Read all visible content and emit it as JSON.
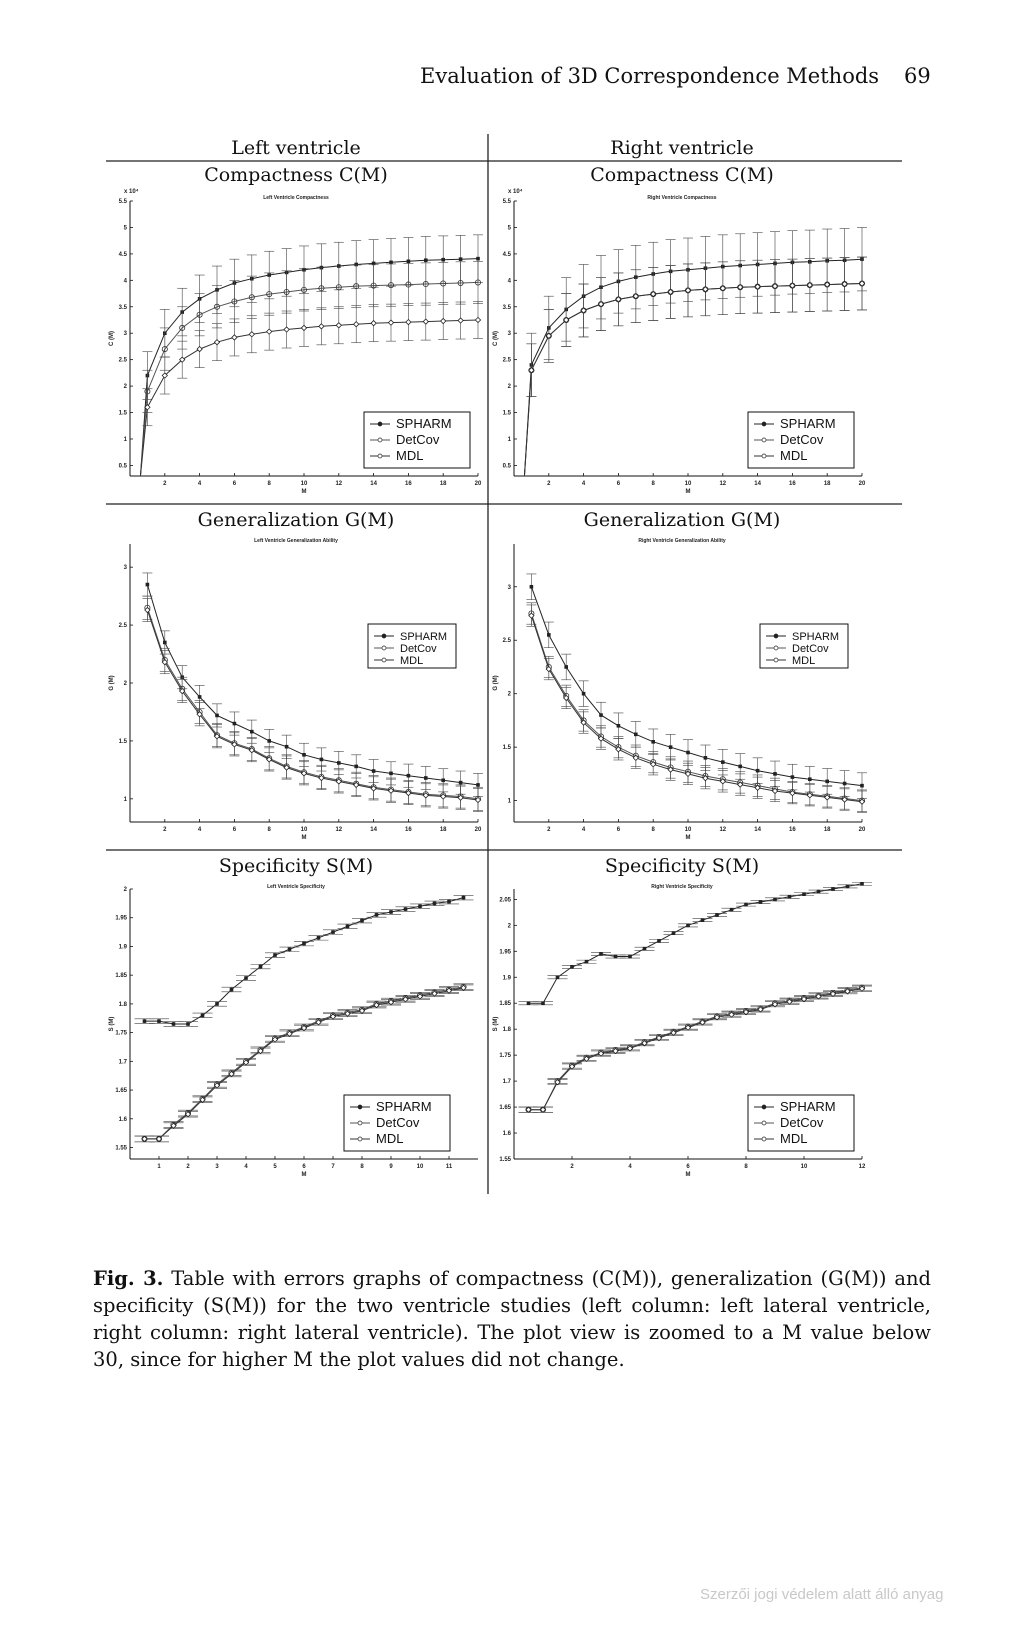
{
  "header": {
    "running_title": "Evaluation of 3D Correspondence Methods",
    "page_number": "69"
  },
  "figure": {
    "columns": [
      "Left ventricle",
      "Right ventricle"
    ],
    "panels": [
      {
        "id": "lc",
        "title": "Compactness C(M)",
        "inner_title": "Left Ventricle Compactness",
        "ylabel": "C (M)",
        "xlabel": "M",
        "exponent": "x 10⁴",
        "xticks": [
          "2",
          "4",
          "6",
          "8",
          "10",
          "12",
          "14",
          "16",
          "18",
          "20"
        ],
        "yticks": [
          "0.5",
          "1",
          "1.5",
          "2",
          "2.5",
          "3",
          "3.5",
          "4",
          "4.5",
          "5",
          "5.5"
        ],
        "legend_pos": "lower-right"
      },
      {
        "id": "rc",
        "title": "Compactness C(M)",
        "inner_title": "Right Ventricle Compactness",
        "ylabel": "C (M)",
        "xlabel": "M",
        "exponent": "x 10⁴",
        "xticks": [
          "2",
          "4",
          "6",
          "8",
          "10",
          "12",
          "14",
          "16",
          "18",
          "20"
        ],
        "yticks": [
          "0.5",
          "1",
          "1.5",
          "2",
          "2.5",
          "3",
          "3.5",
          "4",
          "4.5",
          "5",
          "5.5"
        ],
        "legend_pos": "lower-right"
      },
      {
        "id": "lg",
        "title": "Generalization G(M)",
        "inner_title": "Left Ventricle Generalization Ability",
        "ylabel": "G (M)",
        "xlabel": "M",
        "xticks": [
          "2",
          "4",
          "6",
          "8",
          "10",
          "12",
          "14",
          "16",
          "18",
          "20"
        ],
        "yticks": [
          "1",
          "1.5",
          "2",
          "2.5",
          "3"
        ],
        "legend_pos": "upper-right"
      },
      {
        "id": "rg",
        "title": "Generalization G(M)",
        "inner_title": "Right Ventricle Generalization Ability",
        "ylabel": "G (M)",
        "xlabel": "M",
        "xticks": [
          "2",
          "4",
          "6",
          "8",
          "10",
          "12",
          "14",
          "16",
          "18",
          "20"
        ],
        "yticks": [
          "1",
          "1.5",
          "2",
          "2.5",
          "3"
        ],
        "legend_pos": "upper-right"
      },
      {
        "id": "ls",
        "title": "Specificity S(M)",
        "inner_title": "Left Ventricle Specificity",
        "ylabel": "S (M)",
        "xlabel": "M",
        "xticks": [
          "1",
          "2",
          "3",
          "4",
          "5",
          "6",
          "7",
          "8",
          "9",
          "10",
          "11"
        ],
        "yticks": [
          "1.55",
          "1.6",
          "1.65",
          "1.7",
          "1.75",
          "1.8",
          "1.85",
          "1.9",
          "1.95",
          "2"
        ],
        "legend_pos": "lower-right"
      },
      {
        "id": "rs",
        "title": "Specificity S(M)",
        "inner_title": "Right Ventricle Specificity",
        "ylabel": "S (M)",
        "xlabel": "M",
        "xticks": [
          "2",
          "4",
          "6",
          "8",
          "10",
          "12"
        ],
        "yticks": [
          "1.55",
          "1.6",
          "1.65",
          "1.7",
          "1.75",
          "1.8",
          "1.85",
          "1.9",
          "1.95",
          "2",
          "2.05"
        ],
        "legend_pos": "lower-right"
      }
    ]
  },
  "legend": [
    "SPHARM",
    "DetCov",
    "MDL"
  ],
  "caption": {
    "label": "Fig. 3.",
    "text": "Table with errors graphs of compactness (C(M)), generalization (G(M)) and specificity (S(M)) for the two ventricle studies (left column: left lateral ventricle, right column: right lateral ventricle). The plot view is zoomed to a M value below 30, since for higher M the plot values did not change."
  },
  "watermark": "Szerzői jogi védelem alatt álló anyag",
  "chart_data": [
    {
      "type": "line",
      "title": "Left Ventricle Compactness",
      "xlabel": "M",
      "ylabel": "C (M)",
      "xlim": [
        0,
        20
      ],
      "ylim": [
        0.3,
        5.5
      ],
      "y_scale_note": "x 10^4",
      "x": [
        1,
        2,
        3,
        4,
        5,
        6,
        7,
        8,
        9,
        10,
        11,
        12,
        13,
        14,
        15,
        16,
        17,
        18,
        19,
        20
      ],
      "series": [
        {
          "name": "SPHARM",
          "values": [
            2.2,
            3.0,
            3.4,
            3.65,
            3.82,
            3.95,
            4.03,
            4.1,
            4.15,
            4.2,
            4.24,
            4.27,
            4.3,
            4.32,
            4.34,
            4.36,
            4.38,
            4.39,
            4.4,
            4.41
          ],
          "error": 0.45
        },
        {
          "name": "DetCov",
          "values": [
            1.9,
            2.7,
            3.1,
            3.35,
            3.5,
            3.6,
            3.68,
            3.74,
            3.78,
            3.82,
            3.85,
            3.87,
            3.89,
            3.9,
            3.91,
            3.92,
            3.93,
            3.94,
            3.95,
            3.96
          ],
          "error": 0.4
        },
        {
          "name": "MDL",
          "values": [
            1.6,
            2.2,
            2.5,
            2.7,
            2.83,
            2.92,
            2.98,
            3.03,
            3.07,
            3.1,
            3.13,
            3.15,
            3.17,
            3.19,
            3.2,
            3.21,
            3.22,
            3.23,
            3.24,
            3.25
          ],
          "error": 0.35
        }
      ]
    },
    {
      "type": "line",
      "title": "Right Ventricle Compactness",
      "xlabel": "M",
      "ylabel": "C (M)",
      "xlim": [
        0,
        20
      ],
      "ylim": [
        0.3,
        5.5
      ],
      "y_scale_note": "x 10^4",
      "x": [
        1,
        2,
        3,
        4,
        5,
        6,
        7,
        8,
        9,
        10,
        11,
        12,
        13,
        14,
        15,
        16,
        17,
        18,
        19,
        20
      ],
      "series": [
        {
          "name": "SPHARM",
          "values": [
            2.4,
            3.1,
            3.45,
            3.7,
            3.87,
            3.98,
            4.06,
            4.12,
            4.17,
            4.2,
            4.23,
            4.26,
            4.28,
            4.3,
            4.32,
            4.34,
            4.35,
            4.37,
            4.38,
            4.4
          ],
          "error": 0.6
        },
        {
          "name": "DetCov",
          "values": [
            2.3,
            2.95,
            3.25,
            3.43,
            3.55,
            3.64,
            3.7,
            3.74,
            3.78,
            3.81,
            3.83,
            3.85,
            3.87,
            3.88,
            3.89,
            3.9,
            3.91,
            3.92,
            3.93,
            3.94
          ],
          "error": 0.5
        },
        {
          "name": "MDL",
          "values": [
            2.3,
            2.95,
            3.25,
            3.43,
            3.55,
            3.64,
            3.7,
            3.74,
            3.78,
            3.81,
            3.83,
            3.85,
            3.87,
            3.88,
            3.89,
            3.9,
            3.91,
            3.92,
            3.93,
            3.94
          ],
          "error": 0.5
        }
      ]
    },
    {
      "type": "line",
      "title": "Left Ventricle Generalization Ability",
      "xlabel": "M",
      "ylabel": "G (M)",
      "xlim": [
        0,
        20
      ],
      "ylim": [
        0.8,
        3.2
      ],
      "x": [
        1,
        2,
        3,
        4,
        5,
        6,
        7,
        8,
        9,
        10,
        11,
        12,
        13,
        14,
        15,
        16,
        17,
        18,
        19,
        20
      ],
      "series": [
        {
          "name": "SPHARM",
          "values": [
            2.85,
            2.35,
            2.05,
            1.88,
            1.72,
            1.65,
            1.58,
            1.5,
            1.45,
            1.38,
            1.34,
            1.31,
            1.28,
            1.24,
            1.22,
            1.2,
            1.18,
            1.16,
            1.14,
            1.12
          ],
          "error": 0.1
        },
        {
          "name": "DetCov",
          "values": [
            2.65,
            2.2,
            1.95,
            1.75,
            1.55,
            1.48,
            1.43,
            1.35,
            1.28,
            1.23,
            1.19,
            1.16,
            1.13,
            1.1,
            1.08,
            1.06,
            1.04,
            1.03,
            1.02,
            1.0
          ],
          "error": 0.1
        },
        {
          "name": "MDL",
          "values": [
            2.63,
            2.18,
            1.93,
            1.73,
            1.54,
            1.47,
            1.42,
            1.34,
            1.27,
            1.22,
            1.18,
            1.15,
            1.12,
            1.09,
            1.07,
            1.05,
            1.03,
            1.02,
            1.01,
            0.99
          ],
          "error": 0.1
        }
      ]
    },
    {
      "type": "line",
      "title": "Right Ventricle Generalization Ability",
      "xlabel": "M",
      "ylabel": "G (M)",
      "xlim": [
        0,
        20
      ],
      "ylim": [
        0.8,
        3.4
      ],
      "x": [
        1,
        2,
        3,
        4,
        5,
        6,
        7,
        8,
        9,
        10,
        11,
        12,
        13,
        14,
        15,
        16,
        17,
        18,
        19,
        20
      ],
      "series": [
        {
          "name": "SPHARM",
          "values": [
            3.0,
            2.55,
            2.25,
            2.0,
            1.8,
            1.7,
            1.62,
            1.55,
            1.5,
            1.45,
            1.4,
            1.36,
            1.32,
            1.28,
            1.25,
            1.22,
            1.2,
            1.18,
            1.16,
            1.14
          ],
          "error": 0.12
        },
        {
          "name": "DetCov",
          "values": [
            2.75,
            2.25,
            1.98,
            1.75,
            1.6,
            1.5,
            1.42,
            1.36,
            1.31,
            1.27,
            1.23,
            1.2,
            1.17,
            1.14,
            1.11,
            1.08,
            1.06,
            1.04,
            1.02,
            1.0
          ],
          "error": 0.1
        },
        {
          "name": "MDL",
          "values": [
            2.73,
            2.23,
            1.96,
            1.73,
            1.58,
            1.48,
            1.4,
            1.34,
            1.29,
            1.25,
            1.21,
            1.18,
            1.15,
            1.12,
            1.09,
            1.07,
            1.05,
            1.03,
            1.01,
            0.99
          ],
          "error": 0.1
        }
      ]
    },
    {
      "type": "line",
      "title": "Left Ventricle Specificity",
      "xlabel": "M",
      "ylabel": "S (M)",
      "xlim": [
        0,
        12
      ],
      "ylim": [
        1.53,
        2.0
      ],
      "x": [
        0.5,
        1,
        1.5,
        2,
        2.5,
        3,
        3.5,
        4,
        4.5,
        5,
        5.5,
        6,
        6.5,
        7,
        7.5,
        8,
        8.5,
        9,
        9.5,
        10,
        10.5,
        11,
        11.5
      ],
      "series": [
        {
          "name": "SPHARM",
          "values": [
            1.77,
            1.77,
            1.765,
            1.765,
            1.78,
            1.8,
            1.825,
            1.845,
            1.865,
            1.885,
            1.895,
            1.905,
            1.915,
            1.925,
            1.935,
            1.945,
            1.955,
            1.96,
            1.965,
            1.97,
            1.975,
            1.978,
            1.985
          ],
          "error": 0.004
        },
        {
          "name": "DetCov",
          "values": [
            1.565,
            1.565,
            1.59,
            1.61,
            1.635,
            1.66,
            1.68,
            1.7,
            1.72,
            1.74,
            1.75,
            1.76,
            1.77,
            1.78,
            1.785,
            1.79,
            1.8,
            1.805,
            1.81,
            1.815,
            1.82,
            1.825,
            1.83
          ],
          "error": 0.005
        },
        {
          "name": "MDL",
          "values": [
            1.565,
            1.565,
            1.588,
            1.608,
            1.633,
            1.658,
            1.678,
            1.698,
            1.718,
            1.738,
            1.748,
            1.758,
            1.768,
            1.778,
            1.783,
            1.788,
            1.798,
            1.803,
            1.808,
            1.813,
            1.818,
            1.823,
            1.828
          ],
          "error": 0.005
        }
      ]
    },
    {
      "type": "line",
      "title": "Right Ventricle Specificity",
      "xlabel": "M",
      "ylabel": "S (M)",
      "xlim": [
        0,
        12
      ],
      "ylim": [
        1.55,
        2.07
      ],
      "x": [
        0.5,
        1,
        1.5,
        2,
        2.5,
        3,
        3.5,
        4,
        4.5,
        5,
        5.5,
        6,
        6.5,
        7,
        7.5,
        8,
        8.5,
        9,
        9.5,
        10,
        10.5,
        11,
        11.5,
        12
      ],
      "series": [
        {
          "name": "SPHARM",
          "values": [
            1.85,
            1.85,
            1.9,
            1.92,
            1.93,
            1.945,
            1.94,
            1.94,
            1.955,
            1.97,
            1.985,
            2.0,
            2.01,
            2.02,
            2.03,
            2.04,
            2.045,
            2.05,
            2.055,
            2.06,
            2.065,
            2.07,
            2.075,
            2.08
          ],
          "error": 0.003
        },
        {
          "name": "DetCov",
          "values": [
            1.645,
            1.645,
            1.7,
            1.73,
            1.745,
            1.755,
            1.76,
            1.765,
            1.775,
            1.785,
            1.795,
            1.805,
            1.815,
            1.825,
            1.83,
            1.835,
            1.84,
            1.85,
            1.855,
            1.86,
            1.865,
            1.87,
            1.875,
            1.88
          ],
          "error": 0.005
        },
        {
          "name": "MDL",
          "values": [
            1.645,
            1.645,
            1.698,
            1.728,
            1.743,
            1.753,
            1.758,
            1.763,
            1.773,
            1.783,
            1.793,
            1.803,
            1.813,
            1.823,
            1.828,
            1.833,
            1.838,
            1.848,
            1.853,
            1.858,
            1.863,
            1.868,
            1.873,
            1.878
          ],
          "error": 0.005
        }
      ]
    }
  ]
}
